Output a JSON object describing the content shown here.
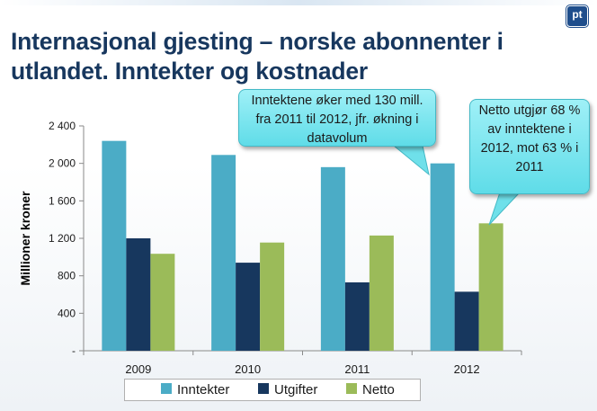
{
  "slide": {
    "title_line1": "Internasjonal gjesting – norske abonnenter i",
    "title_line2": "utlandet. Inntekter og kostnader",
    "logo_text": "pt"
  },
  "callouts": [
    {
      "text": "Inntektene øker med 130 mill. fra 2011 til 2012, jfr. økning i datavolum"
    },
    {
      "text": "Netto utgjør 68 % av inntektene i 2012, mot 63 % i 2011"
    }
  ],
  "chart_data": {
    "type": "bar",
    "title": "",
    "xlabel": "",
    "ylabel": "Millioner kroner",
    "categories": [
      "2009",
      "2010",
      "2011",
      "2012"
    ],
    "ylim": [
      0,
      2400
    ],
    "yticks": [
      0,
      400,
      800,
      1200,
      1600,
      2000,
      2400
    ],
    "ytick_labels": [
      "-",
      "400",
      "800",
      "1 200",
      "1 600",
      "2 000",
      "2 400"
    ],
    "grid": false,
    "legend_position": "bottom",
    "series": [
      {
        "name": "Inntekter",
        "color": "#4bacc6",
        "values": [
          2240,
          2090,
          1960,
          2000
        ]
      },
      {
        "name": "Utgifter",
        "color": "#17375e",
        "values": [
          1200,
          940,
          730,
          630
        ]
      },
      {
        "name": "Netto",
        "color": "#9bbb59",
        "values": [
          1035,
          1155,
          1230,
          1360
        ]
      }
    ]
  }
}
